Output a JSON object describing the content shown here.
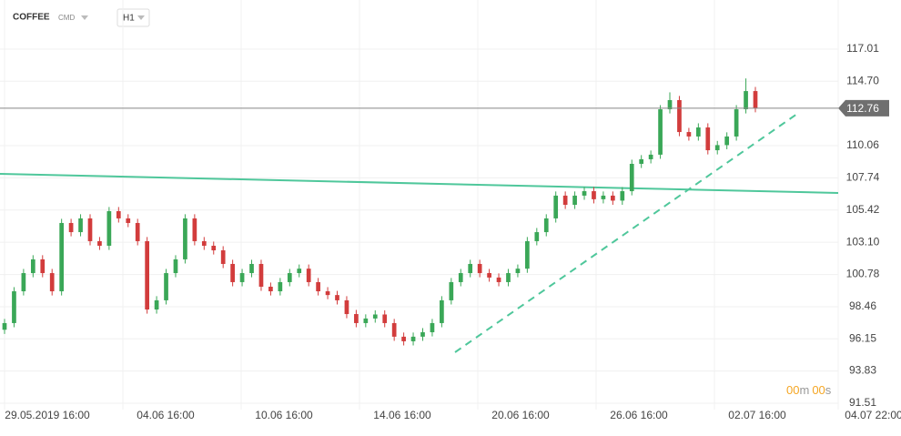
{
  "header": {
    "symbol": "COFFEE",
    "market": "CMD",
    "interval": "H1"
  },
  "countdown": {
    "minutes": "00",
    "m": "m",
    "seconds": "00",
    "s": "s"
  },
  "chart_data": {
    "type": "candlestick",
    "up_color": "#3aa757",
    "down_color": "#d23c3c",
    "ylim": [
      91.18,
      120.55
    ],
    "yticks": [
      117.01,
      {
        "value": 114.7,
        "label": "114.70"
      },
      110.06,
      107.74,
      105.42,
      {
        "value": 103.1,
        "label": "103.10"
      },
      100.78,
      98.46,
      96.15,
      93.83,
      91.51
    ],
    "xtick_labels": [
      "29.05.2019  16:00",
      "04.06  16:00",
      "10.06  16:00",
      "14.06  16:00",
      "20.06  16:00",
      "26.06  16:00",
      "02.07  16:00",
      "04.07  22:00"
    ],
    "last_price": 112.76,
    "open": [
      96.8,
      97.28,
      99.57,
      100.88,
      101.87,
      100.88,
      99.57,
      104.49,
      103.83,
      104.82,
      103.18,
      102.85,
      105.34,
      104.82,
      104.49,
      103.18,
      98.26,
      98.92,
      100.88,
      101.87,
      104.82,
      103.18,
      102.85,
      102.52,
      101.54,
      100.23,
      100.88,
      101.54,
      99.9,
      99.57,
      100.23,
      100.88,
      101.2,
      100.23,
      99.57,
      99.3,
      98.92,
      97.93,
      97.28,
      97.61,
      97.9,
      97.28,
      96.3,
      95.97,
      96.3,
      96.62,
      97.28,
      98.92,
      100.23,
      100.88,
      101.54,
      100.88,
      100.56,
      100.23,
      100.88,
      101.2,
      103.18,
      103.83,
      104.82,
      106.46,
      105.8,
      106.46,
      106.78,
      106.2,
      106.46,
      106.1,
      106.78,
      108.75,
      109.08,
      109.41,
      112.68,
      113.34,
      111.04,
      110.72,
      111.37,
      109.73,
      110.1,
      110.72,
      112.68,
      113.99
    ],
    "high": [
      97.58,
      99.87,
      101.18,
      102.17,
      102.17,
      101.18,
      104.79,
      104.79,
      105.12,
      105.12,
      103.48,
      105.64,
      105.64,
      105.12,
      104.79,
      103.48,
      99.22,
      101.18,
      102.17,
      105.12,
      105.12,
      103.48,
      103.15,
      102.82,
      101.84,
      101.18,
      101.84,
      101.84,
      100.2,
      100.53,
      101.18,
      101.5,
      101.5,
      100.53,
      99.87,
      99.6,
      99.22,
      98.23,
      97.91,
      98.2,
      98.2,
      97.58,
      96.6,
      96.6,
      96.92,
      97.58,
      99.22,
      100.53,
      101.18,
      101.84,
      101.84,
      101.18,
      100.86,
      101.18,
      101.5,
      103.48,
      104.13,
      105.12,
      106.76,
      106.76,
      106.76,
      107.08,
      107.08,
      106.76,
      106.76,
      107.08,
      109.05,
      109.38,
      109.71,
      112.98,
      113.9,
      113.64,
      111.34,
      111.67,
      111.67,
      110.4,
      111.02,
      112.98,
      114.9,
      114.29
    ],
    "low": [
      96.5,
      96.98,
      99.27,
      100.58,
      100.58,
      99.27,
      99.27,
      103.53,
      103.53,
      102.88,
      102.55,
      102.55,
      104.52,
      104.19,
      102.88,
      97.96,
      97.96,
      98.62,
      100.58,
      101.57,
      102.88,
      102.55,
      102.22,
      101.24,
      99.93,
      99.93,
      100.58,
      99.6,
      99.27,
      99.27,
      99.93,
      100.58,
      99.93,
      99.27,
      99.0,
      98.62,
      97.63,
      96.98,
      96.98,
      97.31,
      96.98,
      96.0,
      95.67,
      95.67,
      96.0,
      96.32,
      96.98,
      98.62,
      99.93,
      100.58,
      100.58,
      100.26,
      99.93,
      99.93,
      100.58,
      100.9,
      102.88,
      103.53,
      104.52,
      105.5,
      105.5,
      106.16,
      105.9,
      105.9,
      105.8,
      105.8,
      106.48,
      108.45,
      108.78,
      109.11,
      112.38,
      110.74,
      110.42,
      110.42,
      109.43,
      109.43,
      109.8,
      110.42,
      112.38,
      112.46
    ],
    "close": [
      97.28,
      99.57,
      100.88,
      101.87,
      100.88,
      99.57,
      104.49,
      103.83,
      104.82,
      103.18,
      102.85,
      105.34,
      104.82,
      104.49,
      103.18,
      98.26,
      98.92,
      100.88,
      101.87,
      104.82,
      103.18,
      102.85,
      102.52,
      101.54,
      100.23,
      100.88,
      101.54,
      99.9,
      99.57,
      100.23,
      100.88,
      101.2,
      100.23,
      99.57,
      99.3,
      98.92,
      97.93,
      97.28,
      97.61,
      97.9,
      97.28,
      96.3,
      95.97,
      96.3,
      96.62,
      97.28,
      98.92,
      100.23,
      100.88,
      101.54,
      100.88,
      100.56,
      100.23,
      100.88,
      101.2,
      103.18,
      103.83,
      104.82,
      106.46,
      105.8,
      106.46,
      106.78,
      106.2,
      106.46,
      106.1,
      106.78,
      108.75,
      109.08,
      109.41,
      112.68,
      113.34,
      111.04,
      110.72,
      111.37,
      109.73,
      110.1,
      110.72,
      112.68,
      113.99,
      112.76
    ]
  }
}
